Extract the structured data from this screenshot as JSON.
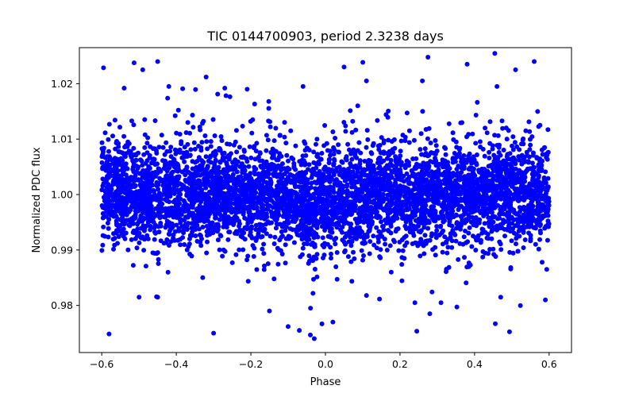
{
  "chart_data": {
    "type": "scatter",
    "title": "TIC 0144700903, period 2.3238 days",
    "xlabel": "Phase",
    "ylabel": "Normalized PDC flux",
    "xlim": [
      -0.66,
      0.66
    ],
    "ylim": [
      0.9715,
      1.0265
    ],
    "xticks": [
      {
        "value": -0.6,
        "label": "−0.6"
      },
      {
        "value": -0.4,
        "label": "−0.4"
      },
      {
        "value": -0.2,
        "label": "−0.2"
      },
      {
        "value": 0.0,
        "label": "0.0"
      },
      {
        "value": 0.2,
        "label": "0.2"
      },
      {
        "value": 0.4,
        "label": "0.4"
      },
      {
        "value": 0.6,
        "label": "0.6"
      }
    ],
    "yticks": [
      {
        "value": 0.98,
        "label": "0.98"
      },
      {
        "value": 0.99,
        "label": "0.99"
      },
      {
        "value": 1.0,
        "label": "1.00"
      },
      {
        "value": 1.01,
        "label": "1.01"
      },
      {
        "value": 1.02,
        "label": "1.02"
      }
    ],
    "grid": false,
    "marker_color": "#0000ff",
    "series": [
      {
        "x_range": [
          -0.6,
          0.6
        ],
        "baseline": 1.0,
        "core_band": [
          0.994,
          1.006
        ],
        "transit_center": -0.04,
        "transit_depth": 0.004,
        "outliers": [
          [
            -0.45,
            1.024
          ],
          [
            -0.49,
            1.0225
          ],
          [
            -0.32,
            1.0212
          ],
          [
            -0.54,
            1.0192
          ],
          [
            -0.42,
            1.0195
          ],
          [
            -0.27,
            1.0192
          ],
          [
            -0.21,
            1.019
          ],
          [
            -0.06,
            1.0195
          ],
          [
            0.05,
            1.023
          ],
          [
            0.11,
            1.0205
          ],
          [
            0.26,
            1.0205
          ],
          [
            0.38,
            1.0235
          ],
          [
            0.51,
            1.0225
          ],
          [
            0.56,
            1.024
          ],
          [
            0.46,
            1.0195
          ],
          [
            -0.1,
            0.9762
          ],
          [
            -0.07,
            0.9755
          ],
          [
            -0.03,
            0.974
          ],
          [
            -0.3,
            0.975
          ],
          [
            0.02,
            0.977
          ],
          [
            -0.04,
            0.9795
          ],
          [
            0.28,
            0.9785
          ],
          [
            0.24,
            0.9805
          ],
          [
            -0.5,
            0.9815
          ],
          [
            -0.45,
            0.9815
          ],
          [
            0.47,
            0.9815
          ],
          [
            0.59,
            0.981
          ],
          [
            0.11,
            0.9818
          ],
          [
            -0.15,
            0.979
          ],
          [
            0.31,
            0.9805
          ]
        ]
      }
    ]
  }
}
